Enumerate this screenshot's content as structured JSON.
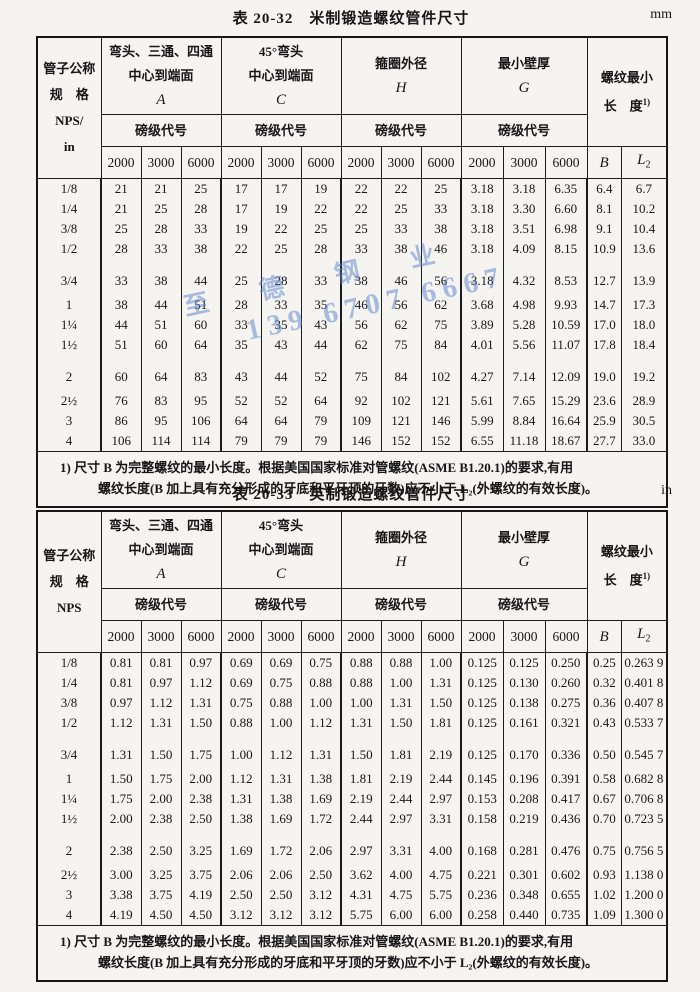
{
  "scan": {
    "watermark_line1": "至德钢业",
    "watermark_line2": "139 6707 6667"
  },
  "table1": {
    "title_label": "表 20-32",
    "title": "米制锻造螺纹管件尺寸",
    "unit": "mm",
    "stub_lines": [
      "管子公称",
      "规　格",
      "NPS/",
      "in"
    ],
    "groups": [
      {
        "lines": [
          "弯头、三通、四通",
          "中心到端面"
        ],
        "letter": "A"
      },
      {
        "lines": [
          "45°弯头",
          "中心到端面"
        ],
        "letter": "C"
      },
      {
        "lines": [
          "箍圈外径"
        ],
        "letter": "H"
      },
      {
        "lines": [
          "最小壁厚"
        ],
        "letter": "G"
      }
    ],
    "pound_label": "磅级代号",
    "classes": [
      "2000",
      "3000",
      "6000"
    ],
    "thread": {
      "line1": "螺纹最小",
      "line2": "长　度",
      "sup": "1)"
    },
    "b_label": "B",
    "l2_letter": "L",
    "l2_sub": "2",
    "rows": [
      [
        "1/8",
        "21",
        "21",
        "25",
        "17",
        "17",
        "19",
        "22",
        "22",
        "25",
        "3.18",
        "3.18",
        "6.35",
        "6.4",
        "6.7"
      ],
      [
        "1/4",
        "21",
        "25",
        "28",
        "17",
        "19",
        "22",
        "22",
        "25",
        "33",
        "3.18",
        "3.30",
        "6.60",
        "8.1",
        "10.2"
      ],
      [
        "3/8",
        "25",
        "28",
        "33",
        "19",
        "22",
        "25",
        "25",
        "33",
        "38",
        "3.18",
        "3.51",
        "6.98",
        "9.1",
        "10.4"
      ],
      [
        "1/2",
        "28",
        "33",
        "38",
        "22",
        "25",
        "28",
        "33",
        "38",
        "46",
        "3.18",
        "4.09",
        "8.15",
        "10.9",
        "13.6"
      ],
      [
        "3/4",
        "33",
        "38",
        "44",
        "25",
        "28",
        "33",
        "38",
        "46",
        "56",
        "3.18",
        "4.32",
        "8.53",
        "12.7",
        "13.9"
      ],
      [
        "1",
        "38",
        "44",
        "51",
        "28",
        "33",
        "35",
        "46",
        "56",
        "62",
        "3.68",
        "4.98",
        "9.93",
        "14.7",
        "17.3"
      ],
      [
        "1¼",
        "44",
        "51",
        "60",
        "33",
        "35",
        "43",
        "56",
        "62",
        "75",
        "3.89",
        "5.28",
        "10.59",
        "17.0",
        "18.0"
      ],
      [
        "1½",
        "51",
        "60",
        "64",
        "35",
        "43",
        "44",
        "62",
        "75",
        "84",
        "4.01",
        "5.56",
        "11.07",
        "17.8",
        "18.4"
      ],
      [
        "2",
        "60",
        "64",
        "83",
        "43",
        "44",
        "52",
        "75",
        "84",
        "102",
        "4.27",
        "7.14",
        "12.09",
        "19.0",
        "19.2"
      ],
      [
        "2½",
        "76",
        "83",
        "95",
        "52",
        "52",
        "64",
        "92",
        "102",
        "121",
        "5.61",
        "7.65",
        "15.29",
        "23.6",
        "28.9"
      ],
      [
        "3",
        "86",
        "95",
        "106",
        "64",
        "64",
        "79",
        "109",
        "121",
        "146",
        "5.99",
        "8.84",
        "16.64",
        "25.9",
        "30.5"
      ],
      [
        "4",
        "106",
        "114",
        "114",
        "79",
        "79",
        "79",
        "146",
        "152",
        "152",
        "6.55",
        "11.18",
        "18.67",
        "27.7",
        "33.0"
      ]
    ],
    "footnote_line1": "1) 尺寸 B 为完整螺纹的最小长度。根据美国国家标准对管螺纹(ASME B1.20.1)的要求,有用",
    "footnote_line2": "螺纹长度(B 加上具有充分形成的牙底和平牙顶的牙数)应不小于 L₂(外螺纹的有效长度)。"
  },
  "table2": {
    "title_label": "表 20-33",
    "title": "英制锻造螺纹管件尺寸",
    "unit": "in",
    "stub_lines": [
      "管子公称",
      "规　格",
      "NPS"
    ],
    "groups": [
      {
        "lines": [
          "弯头、三通、四通",
          "中心到端面"
        ],
        "letter": "A"
      },
      {
        "lines": [
          "45°弯头",
          "中心到端面"
        ],
        "letter": "C"
      },
      {
        "lines": [
          "箍圈外径"
        ],
        "letter": "H"
      },
      {
        "lines": [
          "最小壁厚"
        ],
        "letter": "G"
      }
    ],
    "pound_label": "磅级代号",
    "classes": [
      "2000",
      "3000",
      "6000"
    ],
    "thread": {
      "line1": "螺纹最小",
      "line2": "长　度",
      "sup": "1)"
    },
    "b_label": "B",
    "l2_letter": "L",
    "l2_sub": "2",
    "rows": [
      [
        "1/8",
        "0.81",
        "0.81",
        "0.97",
        "0.69",
        "0.69",
        "0.75",
        "0.88",
        "0.88",
        "1.00",
        "0.125",
        "0.125",
        "0.250",
        "0.25",
        "0.263 9"
      ],
      [
        "1/4",
        "0.81",
        "0.97",
        "1.12",
        "0.69",
        "0.75",
        "0.88",
        "0.88",
        "1.00",
        "1.31",
        "0.125",
        "0.130",
        "0.260",
        "0.32",
        "0.401 8"
      ],
      [
        "3/8",
        "0.97",
        "1.12",
        "1.31",
        "0.75",
        "0.88",
        "1.00",
        "1.00",
        "1.31",
        "1.50",
        "0.125",
        "0.138",
        "0.275",
        "0.36",
        "0.407 8"
      ],
      [
        "1/2",
        "1.12",
        "1.31",
        "1.50",
        "0.88",
        "1.00",
        "1.12",
        "1.31",
        "1.50",
        "1.81",
        "0.125",
        "0.161",
        "0.321",
        "0.43",
        "0.533 7"
      ],
      [
        "3/4",
        "1.31",
        "1.50",
        "1.75",
        "1.00",
        "1.12",
        "1.31",
        "1.50",
        "1.81",
        "2.19",
        "0.125",
        "0.170",
        "0.336",
        "0.50",
        "0.545 7"
      ],
      [
        "1",
        "1.50",
        "1.75",
        "2.00",
        "1.12",
        "1.31",
        "1.38",
        "1.81",
        "2.19",
        "2.44",
        "0.145",
        "0.196",
        "0.391",
        "0.58",
        "0.682 8"
      ],
      [
        "1¼",
        "1.75",
        "2.00",
        "2.38",
        "1.31",
        "1.38",
        "1.69",
        "2.19",
        "2.44",
        "2.97",
        "0.153",
        "0.208",
        "0.417",
        "0.67",
        "0.706 8"
      ],
      [
        "1½",
        "2.00",
        "2.38",
        "2.50",
        "1.38",
        "1.69",
        "1.72",
        "2.44",
        "2.97",
        "3.31",
        "0.158",
        "0.219",
        "0.436",
        "0.70",
        "0.723 5"
      ],
      [
        "2",
        "2.38",
        "2.50",
        "3.25",
        "1.69",
        "1.72",
        "2.06",
        "2.97",
        "3.31",
        "4.00",
        "0.168",
        "0.281",
        "0.476",
        "0.75",
        "0.756 5"
      ],
      [
        "2½",
        "3.00",
        "3.25",
        "3.75",
        "2.06",
        "2.06",
        "2.50",
        "3.62",
        "4.00",
        "4.75",
        "0.221",
        "0.301",
        "0.602",
        "0.93",
        "1.138 0"
      ],
      [
        "3",
        "3.38",
        "3.75",
        "4.19",
        "2.50",
        "2.50",
        "3.12",
        "4.31",
        "4.75",
        "5.75",
        "0.236",
        "0.348",
        "0.655",
        "1.02",
        "1.200 0"
      ],
      [
        "4",
        "4.19",
        "4.50",
        "4.50",
        "3.12",
        "3.12",
        "3.12",
        "5.75",
        "6.00",
        "6.00",
        "0.258",
        "0.440",
        "0.735",
        "1.09",
        "1.300 0"
      ]
    ],
    "footnote_line1": "1) 尺寸 B 为完整螺纹的最小长度。根据美国国家标准对管螺纹(ASME B1.20.1)的要求,有用",
    "footnote_line2": "螺纹长度(B 加上具有充分形成的牙底和平牙顶的牙数)应不小于 L₂(外螺纹的有效长度)。"
  }
}
